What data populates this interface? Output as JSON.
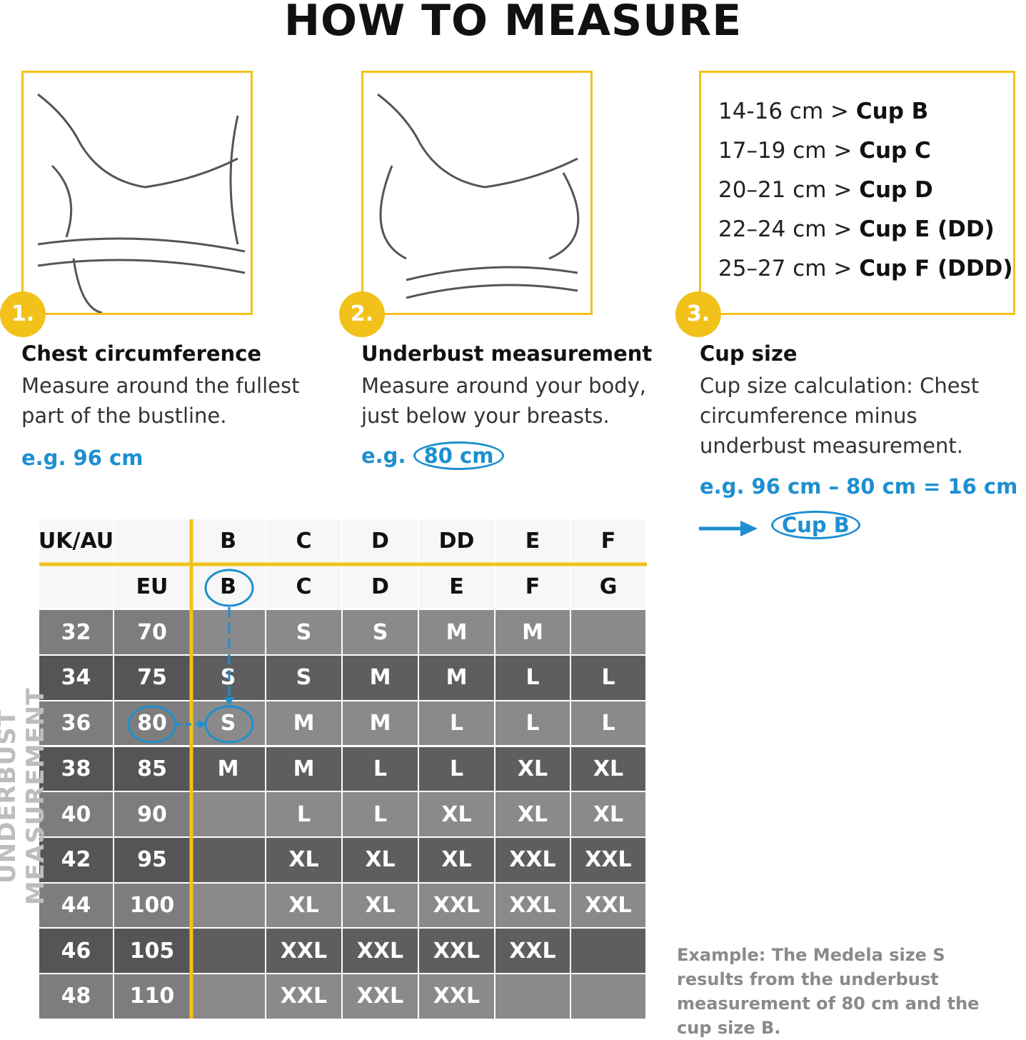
{
  "title": "HOW TO MEASURE",
  "steps": [
    {
      "number": "1.",
      "heading": "Chest circumference",
      "text": "Measure around the fullest part of the bustline.",
      "example": "e.g. 96 cm"
    },
    {
      "number": "2.",
      "heading": "Underbust measurement",
      "text": "Measure around your body, just below your breasts.",
      "example_prefix": "e.g.",
      "example": "80 cm"
    },
    {
      "number": "3.",
      "heading": "Cup size",
      "text": "Cup size calculation: Chest circumference minus underbust measurement.",
      "example": "e.g. 96 cm – 80 cm = 16 cm",
      "result": "Cup B"
    }
  ],
  "cup_ranges": [
    {
      "range": "14-16 cm >",
      "cup": "Cup B"
    },
    {
      "range": "17–19 cm >",
      "cup": "Cup C"
    },
    {
      "range": "20–21 cm >",
      "cup": "Cup D"
    },
    {
      "range": "22–24 cm >",
      "cup": "Cup E (DD)"
    },
    {
      "range": "25–27 cm >",
      "cup": "Cup F (DDD)"
    }
  ],
  "table": {
    "side_label": "UNDERBUST MEASUREMENT",
    "uk_label": "UK/AU",
    "eu_label": "EU",
    "uk_cups": [
      "B",
      "C",
      "D",
      "DD",
      "E",
      "F"
    ],
    "eu_cups": [
      "B",
      "C",
      "D",
      "E",
      "F",
      "G"
    ],
    "rows": [
      {
        "uk": 32,
        "eu": 70,
        "sizes": [
          null,
          "S",
          "S",
          "M",
          "M",
          null
        ]
      },
      {
        "uk": 34,
        "eu": 75,
        "sizes": [
          "S",
          "S",
          "M",
          "M",
          "L",
          "L"
        ]
      },
      {
        "uk": 36,
        "eu": 80,
        "sizes": [
          "S",
          "M",
          "M",
          "L",
          "L",
          "L"
        ]
      },
      {
        "uk": 38,
        "eu": 85,
        "sizes": [
          "M",
          "M",
          "L",
          "L",
          "XL",
          "XL"
        ]
      },
      {
        "uk": 40,
        "eu": 90,
        "sizes": [
          null,
          "L",
          "L",
          "XL",
          "XL",
          "XL"
        ]
      },
      {
        "uk": 42,
        "eu": 95,
        "sizes": [
          null,
          "XL",
          "XL",
          "XL",
          "XXL",
          "XXL"
        ]
      },
      {
        "uk": 44,
        "eu": 100,
        "sizes": [
          null,
          "XL",
          "XL",
          "XXL",
          "XXL",
          "XXL"
        ]
      },
      {
        "uk": 46,
        "eu": 105,
        "sizes": [
          null,
          "XXL",
          "XXL",
          "XXL",
          "XXL",
          null
        ]
      },
      {
        "uk": 48,
        "eu": 110,
        "sizes": [
          null,
          "XXL",
          "XXL",
          "XXL",
          null,
          null
        ]
      }
    ]
  },
  "note": "Example: The Medela size S results from the underbust measurement of 80 cm and the cup size B."
}
